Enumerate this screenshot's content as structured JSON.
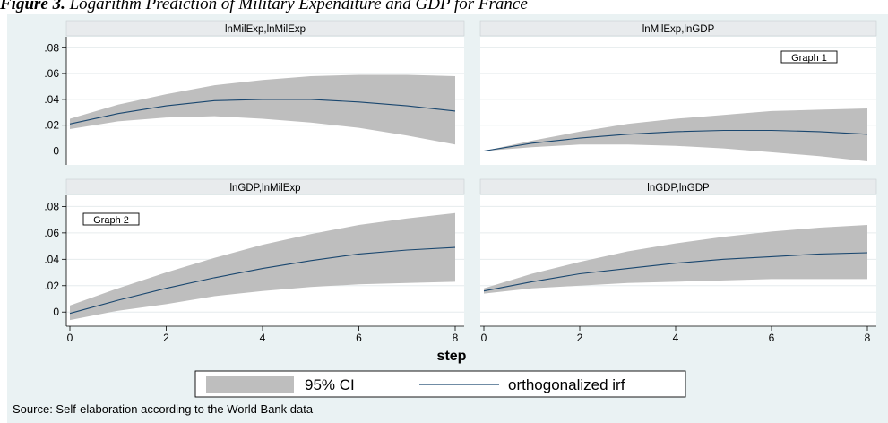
{
  "figure": {
    "caption_label": "Figure 3.",
    "caption_text": "Logarithm Prediction of Military Expenditure and GDP for France",
    "source_note": "Source: Self-elaboration according to the World Bank data"
  },
  "colors": {
    "background": "#eaf2f3",
    "plot_background": "#ffffff",
    "ci_band": "#bebebe",
    "irf_line": "#1a476f",
    "panel_header": "#e8ebed"
  },
  "chart_data": {
    "type": "line",
    "xlabel": "step",
    "xlim": [
      0,
      8
    ],
    "ylim": [
      -0.008,
      0.083
    ],
    "xticks": [
      0,
      2,
      4,
      6,
      8
    ],
    "yticks": [
      0,
      0.02,
      0.04,
      0.06,
      0.08
    ],
    "ytick_labels": [
      "0",
      ".02",
      ".04",
      ".06",
      ".08"
    ],
    "legend": {
      "position": "bottom",
      "entries": [
        "95% CI",
        "orthogonalized irf"
      ]
    },
    "panels": [
      {
        "title": "lnMilExp,lnMilExp",
        "x": [
          0,
          1,
          2,
          3,
          4,
          5,
          6,
          7,
          8
        ],
        "irf": [
          0.021,
          0.029,
          0.035,
          0.039,
          0.04,
          0.04,
          0.038,
          0.035,
          0.031
        ],
        "ci_upper": [
          0.025,
          0.036,
          0.044,
          0.051,
          0.055,
          0.058,
          0.059,
          0.059,
          0.058
        ],
        "ci_lower": [
          0.017,
          0.023,
          0.026,
          0.027,
          0.025,
          0.022,
          0.018,
          0.012,
          0.005
        ]
      },
      {
        "title": "lnMilExp,lnGDP",
        "annotation": "Graph 1",
        "x": [
          0,
          1,
          2,
          3,
          4,
          5,
          6,
          7,
          8
        ],
        "irf": [
          0.0,
          0.006,
          0.01,
          0.013,
          0.015,
          0.016,
          0.016,
          0.015,
          0.013
        ],
        "ci_upper": [
          0.0,
          0.008,
          0.015,
          0.021,
          0.025,
          0.028,
          0.031,
          0.032,
          0.033
        ],
        "ci_lower": [
          0.0,
          0.003,
          0.005,
          0.005,
          0.004,
          0.002,
          -0.001,
          -0.004,
          -0.008
        ]
      },
      {
        "title": "lnGDP,lnMilExp",
        "annotation": "Graph 2",
        "x": [
          0,
          1,
          2,
          3,
          4,
          5,
          6,
          7,
          8
        ],
        "irf": [
          -0.001,
          0.009,
          0.018,
          0.026,
          0.033,
          0.039,
          0.044,
          0.047,
          0.049
        ],
        "ci_upper": [
          0.005,
          0.018,
          0.03,
          0.041,
          0.051,
          0.059,
          0.066,
          0.071,
          0.075
        ],
        "ci_lower": [
          -0.006,
          0.001,
          0.006,
          0.012,
          0.016,
          0.019,
          0.021,
          0.022,
          0.023
        ]
      },
      {
        "title": "lnGDP,lnGDP",
        "x": [
          0,
          1,
          2,
          3,
          4,
          5,
          6,
          7,
          8
        ],
        "irf": [
          0.016,
          0.023,
          0.029,
          0.033,
          0.037,
          0.04,
          0.042,
          0.044,
          0.045
        ],
        "ci_upper": [
          0.018,
          0.029,
          0.038,
          0.046,
          0.052,
          0.057,
          0.061,
          0.064,
          0.066
        ],
        "ci_lower": [
          0.014,
          0.018,
          0.02,
          0.022,
          0.023,
          0.024,
          0.025,
          0.025,
          0.025
        ]
      }
    ]
  }
}
